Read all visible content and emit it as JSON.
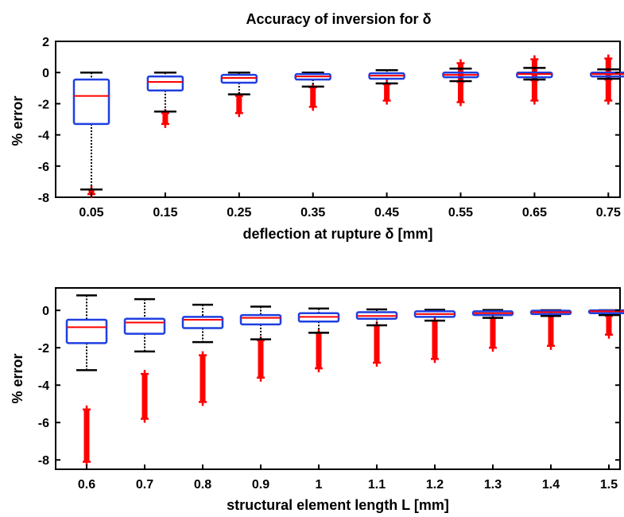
{
  "chart_data": [
    {
      "type": "boxplot",
      "title": "Accuracy of inversion for δ",
      "xlabel": "deflection at rupture δ [mm]",
      "ylabel": "% error",
      "ylim": [
        -8,
        2
      ],
      "yticks": [
        "2",
        "0",
        "-2",
        "-4",
        "-6",
        "-8"
      ],
      "categories": [
        "0.05",
        "0.15",
        "0.25",
        "0.35",
        "0.45",
        "0.55",
        "0.65",
        "0.75"
      ],
      "grid": false,
      "colors": {
        "box": "#1f3fe0",
        "median": "#ff0000",
        "outlier": "#ff0000",
        "whisker": "#000000"
      },
      "boxes": [
        {
          "q1": -3.3,
          "median": -1.5,
          "q3": -0.45,
          "lower_whisker": -7.5,
          "upper_whisker": 0.0,
          "outliers": [
            -7.8,
            -7.5
          ]
        },
        {
          "q1": -1.15,
          "median": -0.6,
          "q3": -0.25,
          "lower_whisker": -2.5,
          "upper_whisker": 0.0,
          "outliers": [
            -2.6,
            -3.3
          ]
        },
        {
          "q1": -0.65,
          "median": -0.35,
          "q3": -0.15,
          "lower_whisker": -1.4,
          "upper_whisker": 0.0,
          "outliers": [
            -1.5,
            -2.6
          ]
        },
        {
          "q1": -0.45,
          "median": -0.25,
          "q3": -0.1,
          "lower_whisker": -0.9,
          "upper_whisker": 0.0,
          "outliers": [
            -0.95,
            -2.2
          ]
        },
        {
          "q1": -0.4,
          "median": -0.2,
          "q3": -0.05,
          "lower_whisker": -0.7,
          "upper_whisker": 0.15,
          "outliers": [
            -0.75,
            -1.8
          ]
        },
        {
          "q1": -0.3,
          "median": -0.15,
          "q3": 0.0,
          "lower_whisker": -0.55,
          "upper_whisker": 0.25,
          "outliers": [
            0.6,
            -0.6,
            -1.9
          ]
        },
        {
          "q1": -0.3,
          "median": -0.1,
          "q3": 0.0,
          "lower_whisker": -0.45,
          "upper_whisker": 0.3,
          "outliers": [
            0.85,
            -0.5,
            -1.8
          ]
        },
        {
          "q1": -0.25,
          "median": -0.1,
          "q3": 0.0,
          "lower_whisker": -0.4,
          "upper_whisker": 0.2,
          "outliers": [
            0.9,
            -0.45,
            -1.8
          ]
        }
      ]
    },
    {
      "type": "boxplot",
      "title": "",
      "xlabel": "structural element length L [mm]",
      "ylabel": "% error",
      "ylim": [
        -8.5,
        1.2
      ],
      "yticks": [
        "0",
        "-2",
        "-4",
        "-6",
        "-8"
      ],
      "categories": [
        "0.6",
        "0.7",
        "0.8",
        "0.9",
        "1",
        "1.1",
        "1.2",
        "1.3",
        "1.4",
        "1.5"
      ],
      "grid": false,
      "colors": {
        "box": "#1f3fe0",
        "median": "#ff0000",
        "outlier": "#ff0000",
        "whisker": "#000000"
      },
      "boxes": [
        {
          "q1": -1.75,
          "median": -0.9,
          "q3": -0.5,
          "lower_whisker": -3.2,
          "upper_whisker": 0.8,
          "outliers": [
            -5.3,
            -8.1
          ]
        },
        {
          "q1": -1.25,
          "median": -0.65,
          "q3": -0.45,
          "lower_whisker": -2.2,
          "upper_whisker": 0.6,
          "outliers": [
            -3.4,
            -5.8
          ]
        },
        {
          "q1": -0.95,
          "median": -0.5,
          "q3": -0.35,
          "lower_whisker": -1.7,
          "upper_whisker": 0.3,
          "outliers": [
            -2.4,
            -4.9
          ]
        },
        {
          "q1": -0.75,
          "median": -0.4,
          "q3": -0.25,
          "lower_whisker": -1.55,
          "upper_whisker": 0.2,
          "outliers": [
            -1.6,
            -3.6
          ]
        },
        {
          "q1": -0.6,
          "median": -0.35,
          "q3": -0.15,
          "lower_whisker": -1.2,
          "upper_whisker": 0.1,
          "outliers": [
            -1.2,
            -3.1
          ]
        },
        {
          "q1": -0.45,
          "median": -0.3,
          "q3": -0.1,
          "lower_whisker": -0.8,
          "upper_whisker": 0.05,
          "outliers": [
            -0.8,
            -2.8
          ]
        },
        {
          "q1": -0.35,
          "median": -0.2,
          "q3": -0.05,
          "lower_whisker": -0.55,
          "upper_whisker": 0.03,
          "outliers": [
            -0.55,
            -2.6
          ]
        },
        {
          "q1": -0.25,
          "median": -0.15,
          "q3": -0.05,
          "lower_whisker": -0.4,
          "upper_whisker": 0.02,
          "outliers": [
            -0.4,
            -2.0
          ]
        },
        {
          "q1": -0.2,
          "median": -0.1,
          "q3": -0.02,
          "lower_whisker": -0.3,
          "upper_whisker": 0.01,
          "outliers": [
            -0.3,
            -1.9
          ]
        },
        {
          "q1": -0.15,
          "median": -0.05,
          "q3": 0.0,
          "lower_whisker": -0.25,
          "upper_whisker": 0.01,
          "outliers": [
            -0.3,
            -1.3
          ]
        }
      ]
    }
  ]
}
